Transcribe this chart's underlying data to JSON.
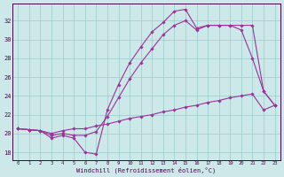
{
  "xlabel": "Windchill (Refroidissement éolien,°C)",
  "background_color": "#cce8e8",
  "grid_color": "#99cccc",
  "line_color": "#993399",
  "x_ticks": [
    0,
    1,
    2,
    3,
    4,
    5,
    6,
    7,
    8,
    9,
    10,
    11,
    12,
    13,
    14,
    15,
    16,
    17,
    18,
    19,
    20,
    21,
    22,
    23
  ],
  "y_ticks": [
    18,
    20,
    22,
    24,
    26,
    28,
    30,
    32
  ],
  "ylim": [
    17.2,
    33.8
  ],
  "xlim": [
    -0.5,
    23.5
  ],
  "line1_x": [
    0,
    1,
    2,
    3,
    4,
    5,
    6,
    7,
    8,
    9,
    10,
    11,
    12,
    13,
    14,
    15,
    16,
    17,
    18,
    19,
    20,
    21,
    22,
    23
  ],
  "line1_y": [
    20.5,
    20.4,
    20.3,
    19.5,
    19.8,
    19.5,
    18.0,
    17.8,
    22.5,
    25.2,
    27.5,
    29.2,
    30.8,
    31.8,
    33.0,
    33.2,
    31.2,
    31.5,
    31.5,
    31.5,
    31.0,
    28.0,
    24.5,
    23.0
  ],
  "line2_x": [
    0,
    1,
    2,
    3,
    4,
    5,
    6,
    7,
    8,
    9,
    10,
    11,
    12,
    13,
    14,
    15,
    16,
    17,
    18,
    19,
    20,
    21,
    22,
    23
  ],
  "line2_y": [
    20.5,
    20.4,
    20.3,
    19.8,
    20.0,
    19.8,
    19.8,
    20.2,
    21.8,
    23.8,
    25.8,
    27.5,
    29.0,
    30.5,
    31.5,
    32.0,
    31.0,
    31.5,
    31.5,
    31.5,
    31.5,
    31.5,
    24.5,
    23.0
  ],
  "line3_x": [
    0,
    1,
    2,
    3,
    4,
    5,
    6,
    7,
    8,
    9,
    10,
    11,
    12,
    13,
    14,
    15,
    16,
    17,
    18,
    19,
    20,
    21,
    22,
    23
  ],
  "line3_y": [
    20.5,
    20.4,
    20.3,
    20.0,
    20.3,
    20.5,
    20.5,
    20.8,
    21.0,
    21.3,
    21.6,
    21.8,
    22.0,
    22.3,
    22.5,
    22.8,
    23.0,
    23.3,
    23.5,
    23.8,
    24.0,
    24.2,
    22.5,
    23.0
  ]
}
